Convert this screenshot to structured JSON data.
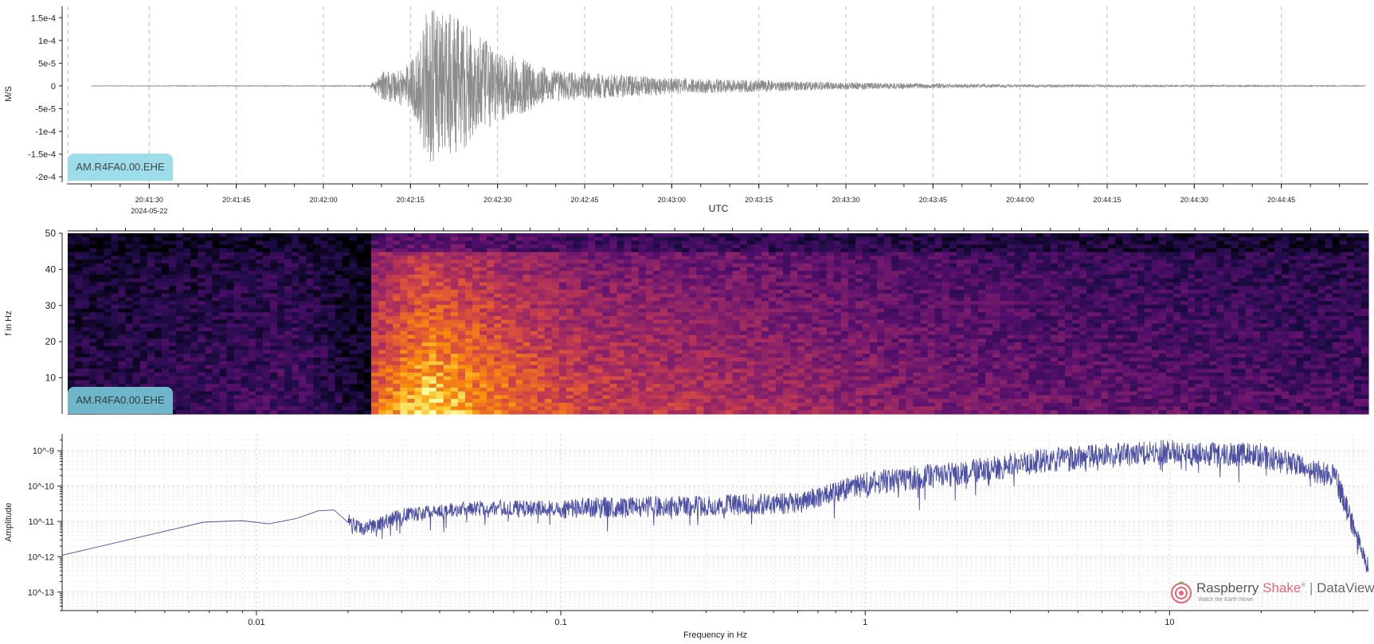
{
  "chart_data": [
    {
      "type": "line",
      "panel": "waveform",
      "station": "AM.R4FA0.00.EHE",
      "ylabel": "M/S",
      "xlabel": "UTC",
      "date_label": "2024-05-22",
      "y_ticks": [
        "1.5e-4",
        "1e-4",
        "5e-5",
        "0",
        "-5e-5",
        "-1e-4",
        "-1.5e-4",
        "-2e-4"
      ],
      "y_tick_values": [
        0.00015,
        0.0001,
        5e-05,
        0,
        -5e-05,
        -0.0001,
        -0.00015,
        -0.0002
      ],
      "ylim": [
        -0.000212,
        0.000175
      ],
      "x_ticks": [
        "20:41:30",
        "20:41:45",
        "20:42:00",
        "20:42:15",
        "20:42:30",
        "20:42:45",
        "20:43:00",
        "20:43:15",
        "20:43:30",
        "20:43:45",
        "20:44:00",
        "20:44:15",
        "20:44:30",
        "20:44:45"
      ],
      "x_start": "20:41:15",
      "x_end": "20:45:00",
      "envelope": [
        {
          "time": "20:41:20",
          "amplitude": 5e-07
        },
        {
          "time": "20:42:08",
          "amplitude": 1e-06
        },
        {
          "time": "20:42:10",
          "amplitude": 3e-05
        },
        {
          "time": "20:42:15",
          "amplitude": 5e-05
        },
        {
          "time": "20:42:18",
          "amplitude": 0.00017
        },
        {
          "time": "20:42:22",
          "amplitude": 0.00016
        },
        {
          "time": "20:42:26",
          "amplitude": 0.00012
        },
        {
          "time": "20:42:30",
          "amplitude": 8e-05
        },
        {
          "time": "20:42:40",
          "amplitude": 3.5e-05
        },
        {
          "time": "20:43:00",
          "amplitude": 1.8e-05
        },
        {
          "time": "20:43:30",
          "amplitude": 8e-06
        },
        {
          "time": "20:44:00",
          "amplitude": 3e-06
        },
        {
          "time": "20:44:55",
          "amplitude": 1e-06
        }
      ],
      "color": "#8c8c8c"
    },
    {
      "type": "heatmap",
      "panel": "spectrogram",
      "station": "AM.R4FA0.00.EHE",
      "ylabel": "f in Hz",
      "y_ticks": [
        "10",
        "20",
        "30",
        "40",
        "50"
      ],
      "y_tick_values": [
        10,
        20,
        30,
        40,
        50
      ],
      "ylim": [
        0,
        50
      ],
      "colormap": "inferno",
      "energy_profile": [
        {
          "time": "20:41:15",
          "level": 0.15
        },
        {
          "time": "20:41:55",
          "level": 0.25
        },
        {
          "time": "20:42:07",
          "level": 0.05
        },
        {
          "time": "20:42:08",
          "level": 0.72
        },
        {
          "time": "20:42:17",
          "level": 0.92
        },
        {
          "time": "20:42:25",
          "level": 0.82
        },
        {
          "time": "20:42:45",
          "level": 0.62
        },
        {
          "time": "20:43:15",
          "level": 0.52
        },
        {
          "time": "20:43:45",
          "level": 0.4
        },
        {
          "time": "20:44:15",
          "level": 0.32
        },
        {
          "time": "20:45:00",
          "level": 0.25
        }
      ]
    },
    {
      "type": "line",
      "panel": "spectrum",
      "ylabel": "Amplitude",
      "xlabel": "Frequency in Hz",
      "x_scale": "log",
      "y_scale": "log",
      "x_ticks": [
        "0.01",
        "0.1",
        "1",
        "10"
      ],
      "x_tick_values": [
        0.01,
        0.1,
        1,
        10
      ],
      "y_ticks": [
        "10^-9",
        "10^-10",
        "10^-11",
        "10^-12",
        "10^-13"
      ],
      "y_tick_values": [
        1e-09,
        1e-10,
        1e-11,
        1e-12,
        1e-13
      ],
      "xlim": [
        0.0023,
        45
      ],
      "ylim": [
        3e-14,
        3e-09
      ],
      "color": "#2e3192",
      "trend": [
        {
          "f": 0.0023,
          "amp": 1.1e-12
        },
        {
          "f": 0.0067,
          "amp": 9.5e-12
        },
        {
          "f": 0.0089,
          "amp": 1.05e-11
        },
        {
          "f": 0.011,
          "amp": 8.5e-12
        },
        {
          "f": 0.0135,
          "amp": 1.2e-11
        },
        {
          "f": 0.016,
          "amp": 2e-11
        },
        {
          "f": 0.018,
          "amp": 2.1e-11
        },
        {
          "f": 0.022,
          "amp": 6e-12
        },
        {
          "f": 0.03,
          "amp": 1.5e-11
        },
        {
          "f": 0.05,
          "amp": 2.5e-11
        },
        {
          "f": 0.1,
          "amp": 2.5e-11
        },
        {
          "f": 0.3,
          "amp": 3e-11
        },
        {
          "f": 0.6,
          "amp": 3.5e-11
        },
        {
          "f": 1,
          "amp": 1.3e-10
        },
        {
          "f": 2,
          "amp": 2.5e-10
        },
        {
          "f": 4,
          "amp": 6e-10
        },
        {
          "f": 10,
          "amp": 1e-09
        },
        {
          "f": 20,
          "amp": 8e-10
        },
        {
          "f": 35,
          "amp": 2e-10
        },
        {
          "f": 45,
          "amp": 5e-13
        }
      ]
    }
  ],
  "logo": {
    "name_part1": "Raspberry ",
    "name_part2": "Shake",
    "registered": "®",
    "separator": " | ",
    "product": "DataView",
    "tagline": "Watch the Earth Move"
  }
}
